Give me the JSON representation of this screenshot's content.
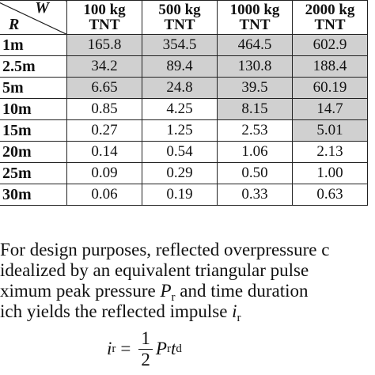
{
  "table": {
    "header": {
      "w_label": "W",
      "r_label": "R",
      "columns": [
        {
          "line1": "100 kg",
          "line2": "TNT"
        },
        {
          "line1": "500 kg",
          "line2": "TNT"
        },
        {
          "line1": "1000 kg",
          "line2": "TNT"
        },
        {
          "line1": "2000 kg",
          "line2": "TNT"
        }
      ]
    },
    "rows": [
      {
        "label": "1m",
        "values": [
          "165.8",
          "354.5",
          "464.5",
          "602.9"
        ],
        "shaded": [
          true,
          true,
          true,
          true
        ]
      },
      {
        "label": "2.5m",
        "values": [
          "34.2",
          "89.4",
          "130.8",
          "188.4"
        ],
        "shaded": [
          true,
          true,
          true,
          true
        ]
      },
      {
        "label": "5m",
        "values": [
          "6.65",
          "24.8",
          "39.5",
          "60.19"
        ],
        "shaded": [
          true,
          true,
          true,
          true
        ]
      },
      {
        "label": "10m",
        "values": [
          "0.85",
          "4.25",
          "8.15",
          "14.7"
        ],
        "shaded": [
          false,
          false,
          true,
          true
        ]
      },
      {
        "label": "15m",
        "values": [
          "0.27",
          "1.25",
          "2.53",
          "5.01"
        ],
        "shaded": [
          false,
          false,
          false,
          true
        ]
      },
      {
        "label": "20m",
        "values": [
          "0.14",
          "0.54",
          "1.06",
          "2.13"
        ],
        "shaded": [
          false,
          false,
          false,
          false
        ]
      },
      {
        "label": "25m",
        "values": [
          "0.09",
          "0.29",
          "0.50",
          "1.00"
        ],
        "shaded": [
          false,
          false,
          false,
          false
        ]
      },
      {
        "label": "30m",
        "values": [
          "0.06",
          "0.19",
          "0.33",
          "0.63"
        ],
        "shaded": [
          false,
          false,
          false,
          false
        ]
      }
    ],
    "shade_color": "#d0d0d0"
  },
  "paragraph": {
    "line1": "For design purposes, reflected overpressure c",
    "line2": " idealized by an equivalent triangular pulse",
    "line3_pre": "ximum peak pressure ",
    "line3_var": "P",
    "line3_sub": "r",
    "line3_post": " and time duration",
    "line4_pre": "ich yields the reflected impulse ",
    "line4_var": "i",
    "line4_sub": "r"
  },
  "equation": {
    "lhs_var": "i",
    "lhs_sub": "r",
    "equals": "=",
    "frac_num": "1",
    "frac_den": "2",
    "p_var": "P",
    "p_sub": "r",
    "t_var": "t",
    "t_sub": "d"
  }
}
